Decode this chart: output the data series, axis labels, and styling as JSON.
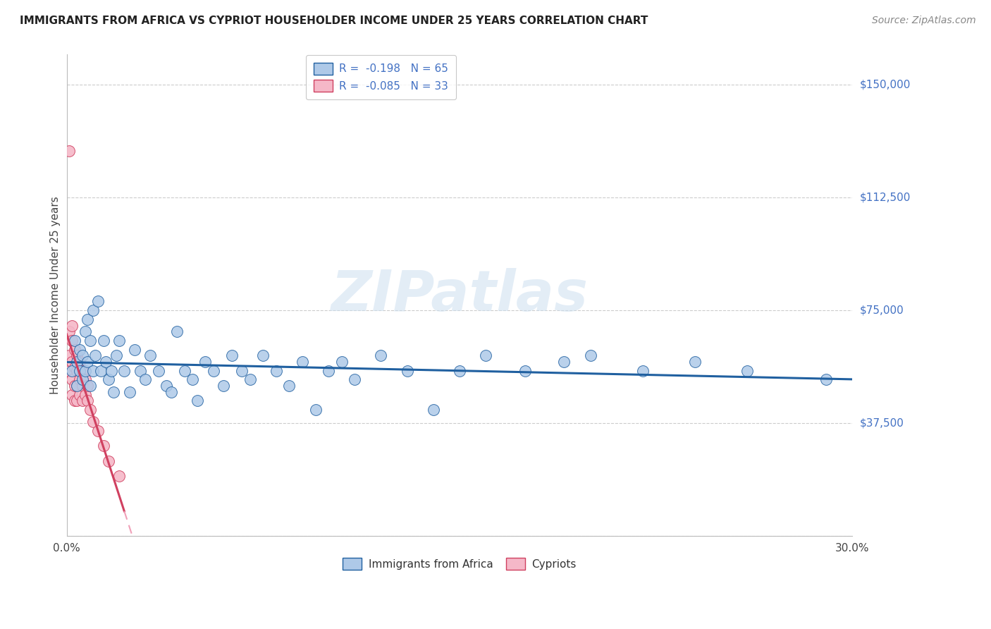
{
  "title": "IMMIGRANTS FROM AFRICA VS CYPRIOT HOUSEHOLDER INCOME UNDER 25 YEARS CORRELATION CHART",
  "source": "Source: ZipAtlas.com",
  "ylabel": "Householder Income Under 25 years",
  "xlim": [
    0.0,
    0.3
  ],
  "ylim": [
    0,
    160000
  ],
  "yticks": [
    0,
    37500,
    75000,
    112500,
    150000
  ],
  "ytick_labels": [
    "",
    "$37,500",
    "$75,000",
    "$112,500",
    "$150,000"
  ],
  "xticks": [
    0.0,
    0.05,
    0.1,
    0.15,
    0.2,
    0.25,
    0.3
  ],
  "xtick_labels": [
    "0.0%",
    "",
    "",
    "",
    "",
    "",
    "30.0%"
  ],
  "africa_color": "#aec9e8",
  "cypriot_color": "#f5b8c8",
  "africa_line_color": "#2060a0",
  "cypriot_line_color": "#d04060",
  "cypriot_dash_color": "#f0a0b8",
  "watermark": "ZIPatlas",
  "africa_x": [
    0.002,
    0.003,
    0.004,
    0.004,
    0.005,
    0.005,
    0.006,
    0.006,
    0.007,
    0.007,
    0.008,
    0.008,
    0.009,
    0.009,
    0.01,
    0.01,
    0.011,
    0.012,
    0.013,
    0.014,
    0.015,
    0.016,
    0.017,
    0.018,
    0.019,
    0.02,
    0.022,
    0.024,
    0.026,
    0.028,
    0.03,
    0.032,
    0.035,
    0.038,
    0.04,
    0.042,
    0.045,
    0.048,
    0.05,
    0.053,
    0.056,
    0.06,
    0.063,
    0.067,
    0.07,
    0.075,
    0.08,
    0.085,
    0.09,
    0.095,
    0.1,
    0.105,
    0.11,
    0.12,
    0.13,
    0.14,
    0.15,
    0.16,
    0.175,
    0.19,
    0.2,
    0.22,
    0.24,
    0.26,
    0.29
  ],
  "africa_y": [
    55000,
    65000,
    50000,
    58000,
    55000,
    62000,
    52000,
    60000,
    68000,
    55000,
    72000,
    58000,
    50000,
    65000,
    75000,
    55000,
    60000,
    78000,
    55000,
    65000,
    58000,
    52000,
    55000,
    48000,
    60000,
    65000,
    55000,
    48000,
    62000,
    55000,
    52000,
    60000,
    55000,
    50000,
    48000,
    68000,
    55000,
    52000,
    45000,
    58000,
    55000,
    50000,
    60000,
    55000,
    52000,
    60000,
    55000,
    50000,
    58000,
    42000,
    55000,
    58000,
    52000,
    60000,
    55000,
    42000,
    55000,
    60000,
    55000,
    58000,
    60000,
    55000,
    58000,
    55000,
    52000
  ],
  "cypriot_x": [
    0.001,
    0.001,
    0.001,
    0.001,
    0.002,
    0.002,
    0.002,
    0.002,
    0.002,
    0.003,
    0.003,
    0.003,
    0.003,
    0.004,
    0.004,
    0.004,
    0.004,
    0.005,
    0.005,
    0.005,
    0.006,
    0.006,
    0.006,
    0.007,
    0.007,
    0.008,
    0.008,
    0.009,
    0.01,
    0.012,
    0.014,
    0.016,
    0.02
  ],
  "cypriot_y": [
    128000,
    68000,
    60000,
    55000,
    70000,
    65000,
    58000,
    52000,
    47000,
    62000,
    56000,
    50000,
    45000,
    60000,
    55000,
    50000,
    45000,
    58000,
    52000,
    47000,
    55000,
    50000,
    45000,
    52000,
    47000,
    50000,
    45000,
    42000,
    38000,
    35000,
    30000,
    25000,
    20000
  ],
  "africa_R": "-0.198",
  "africa_N": "65",
  "cypriot_R": "-0.085",
  "cypriot_N": "33"
}
